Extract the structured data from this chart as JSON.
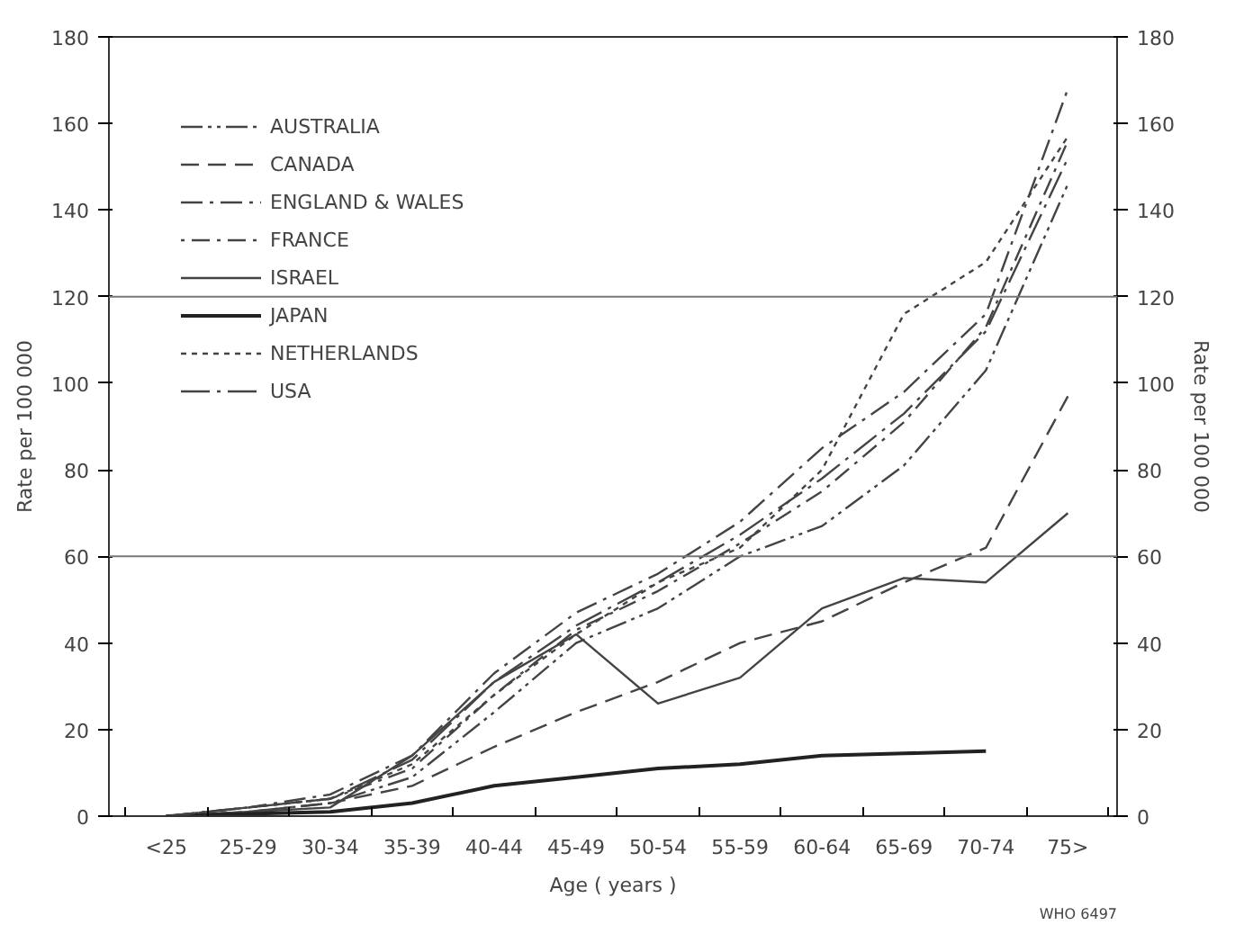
{
  "chart_data": {
    "type": "line",
    "xlabel": "Age ( years )",
    "ylabel": "Rate per 100 000",
    "y2label": "Rate per 100 000",
    "categories": [
      "<25",
      "25-29",
      "30-34",
      "35-39",
      "40-44",
      "45-49",
      "50-54",
      "55-59",
      "60-64",
      "65-69",
      "70-74",
      "75>"
    ],
    "ylim": [
      0,
      180
    ],
    "yticks": [
      0,
      20,
      40,
      60,
      80,
      100,
      120,
      140,
      160,
      180
    ],
    "y2lim": [
      0,
      180
    ],
    "y2ticks": [
      0,
      20,
      40,
      60,
      80,
      100,
      120,
      140,
      160,
      180
    ],
    "series": [
      {
        "name": "AUSTRALIA",
        "color": "#444444",
        "line_style": "dashdotdot",
        "values": [
          0,
          1,
          3,
          9,
          24,
          40,
          48,
          60,
          67,
          81,
          103,
          146
        ]
      },
      {
        "name": "CANADA",
        "color": "#444444",
        "line_style": "dashed",
        "values": [
          0,
          1,
          3,
          7,
          16,
          24,
          31,
          40,
          45,
          54,
          62,
          97
        ]
      },
      {
        "name": "ENGLAND & WALES",
        "color": "#444444",
        "line_style": "dashdot",
        "values": [
          0,
          2,
          5,
          14,
          33,
          47,
          56,
          68,
          85,
          98,
          116,
          168
        ]
      },
      {
        "name": "FRANCE",
        "color": "#444444",
        "line_style": "dotdash",
        "values": [
          0,
          2,
          4,
          11,
          28,
          43,
          52,
          63,
          75,
          91,
          113,
          156
        ]
      },
      {
        "name": "ISRAEL",
        "color": "#444444",
        "line_style": "solid",
        "values": [
          0,
          1,
          2,
          14,
          31,
          42,
          26,
          32,
          48,
          55,
          54,
          70
        ]
      },
      {
        "name": "JAPAN",
        "color": "#222222",
        "line_style": "solid",
        "values": [
          0,
          0.5,
          1,
          3,
          7,
          9,
          11,
          12,
          14,
          14.5,
          15,
          null
        ]
      },
      {
        "name": "NETHERLANDS",
        "color": "#444444",
        "line_style": "dotted",
        "values": [
          0,
          2,
          4,
          12,
          28,
          42,
          54,
          62,
          80,
          116,
          128,
          157
        ]
      },
      {
        "name": "USA",
        "color": "#444444",
        "line_style": "longdashdot",
        "values": [
          0,
          2,
          4,
          13,
          31,
          44,
          54,
          65,
          78,
          93,
          112,
          152
        ]
      }
    ],
    "ref_lines": [
      {
        "axis": "y",
        "value": 60,
        "color": "#777777"
      },
      {
        "axis": "y",
        "value": 120,
        "color": "#777777"
      }
    ],
    "legend": "top left",
    "grid": false,
    "annotations": [
      "WHO 6497"
    ]
  }
}
